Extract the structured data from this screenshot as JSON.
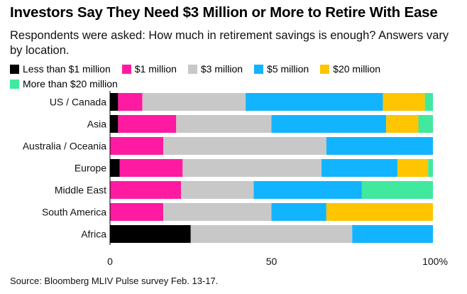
{
  "title": "Investors Say They Need $3 Million or More to Retire With Ease",
  "subtitle": "Respondents were asked: How much in retirement savings is enough? Answers vary by location.",
  "source": "Source: Bloomberg MLIV Pulse survey Feb. 13-17.",
  "chart_data": {
    "type": "bar",
    "orientation": "horizontal",
    "stacked": true,
    "categories": [
      "US / Canada",
      "Asia",
      "Australia / Oceania",
      "Europe",
      "Middle East",
      "South America",
      "Africa"
    ],
    "series": [
      {
        "name": "Less than $1 million",
        "color": "#000000",
        "values": [
          2.5,
          2.5,
          0,
          3,
          0,
          0,
          25
        ]
      },
      {
        "name": "$1 million",
        "color": "#ff1aa2",
        "values": [
          7.5,
          18,
          16.5,
          19.5,
          22,
          16.5,
          0
        ]
      },
      {
        "name": "$3 million",
        "color": "#c8c8c8",
        "values": [
          32,
          29.5,
          50.5,
          43,
          22.5,
          33.5,
          50
        ]
      },
      {
        "name": "$5 million",
        "color": "#12b4ff",
        "values": [
          42.5,
          35.5,
          33,
          23.5,
          33.5,
          17,
          25
        ]
      },
      {
        "name": "$20 million",
        "color": "#ffc500",
        "values": [
          13,
          10,
          0,
          9.5,
          0,
          33,
          0
        ]
      },
      {
        "name": "More than $20 million",
        "color": "#40e99d",
        "values": [
          2.5,
          4.5,
          0,
          1.5,
          22,
          0,
          0
        ]
      }
    ],
    "xlim": [
      0,
      100
    ],
    "xticks": [
      "0",
      "50",
      "100%"
    ],
    "grid": false,
    "legend_position": "top"
  }
}
